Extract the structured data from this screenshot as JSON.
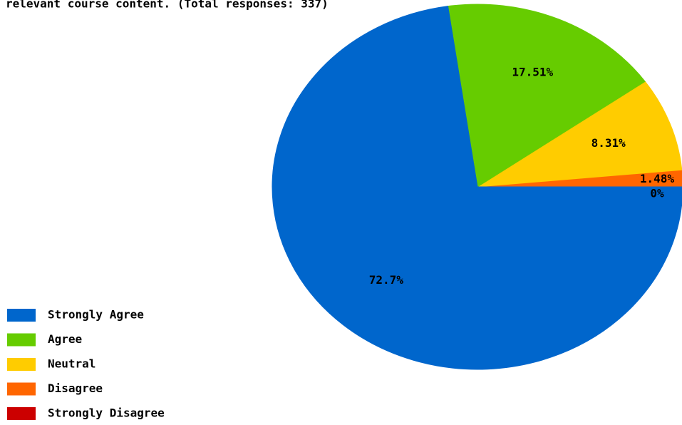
{
  "chart_data": {
    "type": "pie",
    "title": "relevant course content. (Total responses: 337)",
    "categories": [
      "Strongly Agree",
      "Agree",
      "Neutral",
      "Disagree",
      "Strongly Disagree"
    ],
    "values": [
      72.7,
      17.51,
      8.31,
      1.48,
      0
    ],
    "value_labels": [
      "72.7%",
      "17.51%",
      "8.31%",
      "1.48%",
      "0%"
    ],
    "colors": [
      "#0066cc",
      "#66cc00",
      "#ffcc00",
      "#ff6600",
      "#cc0000"
    ],
    "legend": "bottom-left"
  }
}
